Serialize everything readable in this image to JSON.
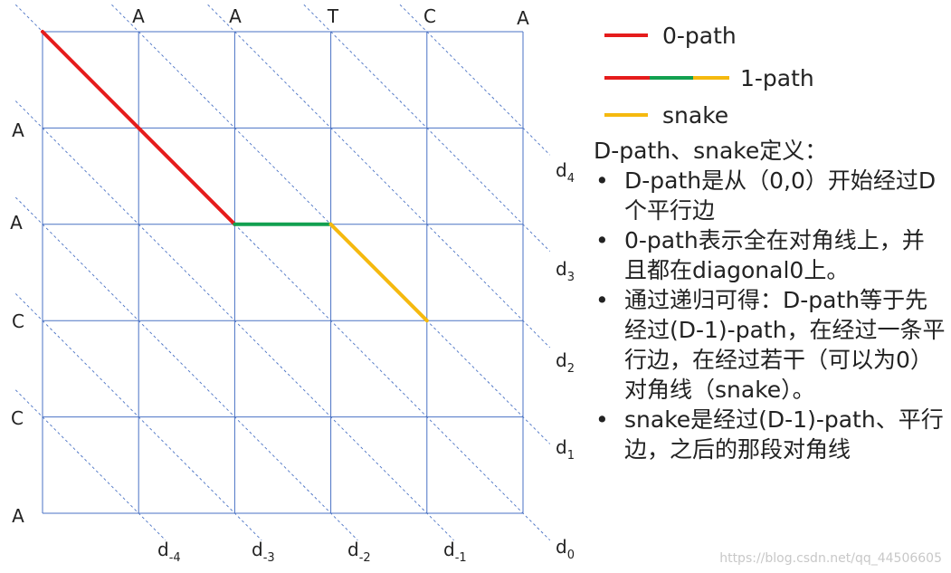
{
  "diagram": {
    "columns": [
      "A",
      "A",
      "T",
      "C",
      "A"
    ],
    "rows": [
      "A",
      "A",
      "C",
      "C",
      "A"
    ],
    "diagonals_right": [
      {
        "base": "d",
        "sub": "4"
      },
      {
        "base": "d",
        "sub": "3"
      },
      {
        "base": "d",
        "sub": "2"
      },
      {
        "base": "d",
        "sub": "1"
      },
      {
        "base": "d",
        "sub": "0"
      }
    ],
    "diagonals_bottom": [
      {
        "base": "d",
        "sub": "-4"
      },
      {
        "base": "d",
        "sub": "-3"
      },
      {
        "base": "d",
        "sub": "-2"
      },
      {
        "base": "d",
        "sub": "-1"
      }
    ],
    "path_0": [
      [
        0,
        0
      ],
      [
        2,
        2
      ]
    ],
    "path_1_horizontal": [
      [
        2,
        2
      ],
      [
        3,
        2
      ]
    ],
    "snake": [
      [
        3,
        2
      ],
      [
        4,
        3
      ]
    ],
    "colors": {
      "path_0": "#e51c1c",
      "horizontal": "#12a050",
      "snake": "#f5b90f",
      "grid": "#4a72c4"
    }
  },
  "legend": {
    "items": [
      {
        "label": "0-path"
      },
      {
        "label": "1-path"
      },
      {
        "label": "snake"
      }
    ]
  },
  "notes": {
    "title": "D-path、snake定义：",
    "bullets": [
      "D-path是从（0,0）开始经过D个平行边",
      "0-path表示全在对角线上，并且都在diagonal0上。",
      "通过递归可得：D-path等于先经过(D-1)-path，在经过一条平行边，在经过若干（可以为0）对角线（snake）。",
      "snake是经过(D-1)-path、平行边，之后的那段对角线"
    ]
  },
  "watermark": "https://blog.csdn.net/qq_44506605"
}
